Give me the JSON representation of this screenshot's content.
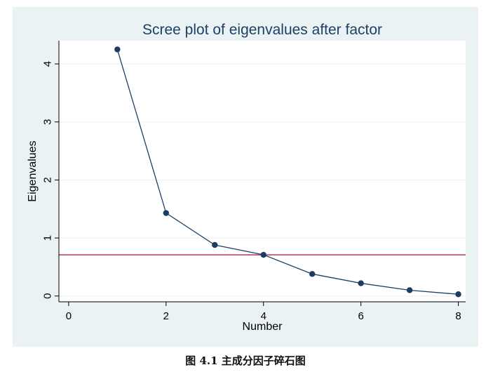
{
  "chart_data": {
    "type": "line",
    "title": "Scree plot of eigenvalues after factor",
    "xlabel": "Number",
    "ylabel": "Eigenvalues",
    "x": [
      1,
      2,
      3,
      4,
      5,
      6,
      7,
      8
    ],
    "values": [
      4.25,
      1.43,
      0.88,
      0.71,
      0.38,
      0.22,
      0.1,
      0.03
    ],
    "xticks": [
      0,
      2,
      4,
      6,
      8
    ],
    "yticks": [
      0,
      1,
      2,
      3,
      4
    ],
    "xlim": [
      -0.2,
      8.15
    ],
    "ylim": [
      -0.1,
      4.4
    ],
    "reference_line": {
      "y": 0.71,
      "color": "#a5254a"
    },
    "grid": true,
    "colors": {
      "line": "#1e3f66",
      "marker": "#1a3c63",
      "background": "#eaf2f3",
      "plot_area": "#ffffff",
      "grid": "#e9eef0"
    }
  },
  "caption": "图 4.1 主成分因子碎石图"
}
